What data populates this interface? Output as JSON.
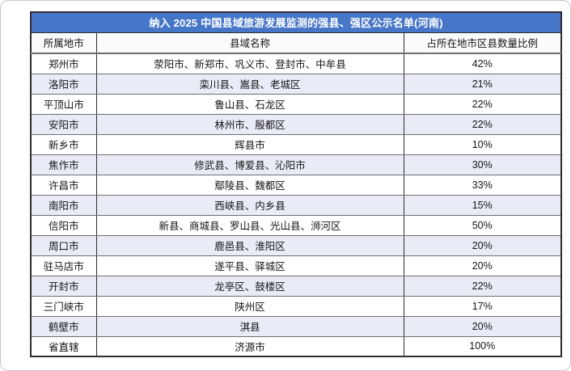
{
  "title": "纳入 2025 中国县域旅游发展监测的强县、强区公示名单(河南)",
  "columns": [
    "所属地市",
    "县域名称",
    "占所在地市区县数量比例"
  ],
  "rows": [
    {
      "city": "郑州市",
      "counties": "荥阳市、新郑市、巩义市、登封市、中牟县",
      "ratio": "42%"
    },
    {
      "city": "洛阳市",
      "counties": "栾川县、嵩县、老城区",
      "ratio": "21%"
    },
    {
      "city": "平顶山市",
      "counties": "鲁山县、石龙区",
      "ratio": "22%"
    },
    {
      "city": "安阳市",
      "counties": "林州市、殷都区",
      "ratio": "22%"
    },
    {
      "city": "新乡市",
      "counties": "辉县市",
      "ratio": "10%"
    },
    {
      "city": "焦作市",
      "counties": "修武县、博爱县、沁阳市",
      "ratio": "30%"
    },
    {
      "city": "许昌市",
      "counties": "鄢陵县、魏都区",
      "ratio": "33%"
    },
    {
      "city": "南阳市",
      "counties": "西峡县、内乡县",
      "ratio": "15%"
    },
    {
      "city": "信阳市",
      "counties": "新县、商城县、罗山县、光山县、浉河区",
      "ratio": "50%"
    },
    {
      "city": "周口市",
      "counties": "鹿邑县、淮阳区",
      "ratio": "20%"
    },
    {
      "city": "驻马店市",
      "counties": "遂平县、驿城区",
      "ratio": "20%"
    },
    {
      "city": "开封市",
      "counties": "龙亭区、鼓楼区",
      "ratio": "22%"
    },
    {
      "city": "三门峡市",
      "counties": "陕州区",
      "ratio": "17%"
    },
    {
      "city": "鹤壁市",
      "counties": "淇县",
      "ratio": "20%"
    },
    {
      "city": "省直辖",
      "counties": "济源市",
      "ratio": "100%"
    }
  ],
  "colors": {
    "title_bg": "#4676C8",
    "title_text": "#FFFFFF",
    "alt_row_bg": "#E9ECF6",
    "header_bg": "#FAFBFD",
    "border_dark": "#2E2E2E",
    "border_mid": "#6F6F6F",
    "text_color": "#141414",
    "page_border": "#C6C6C6"
  }
}
